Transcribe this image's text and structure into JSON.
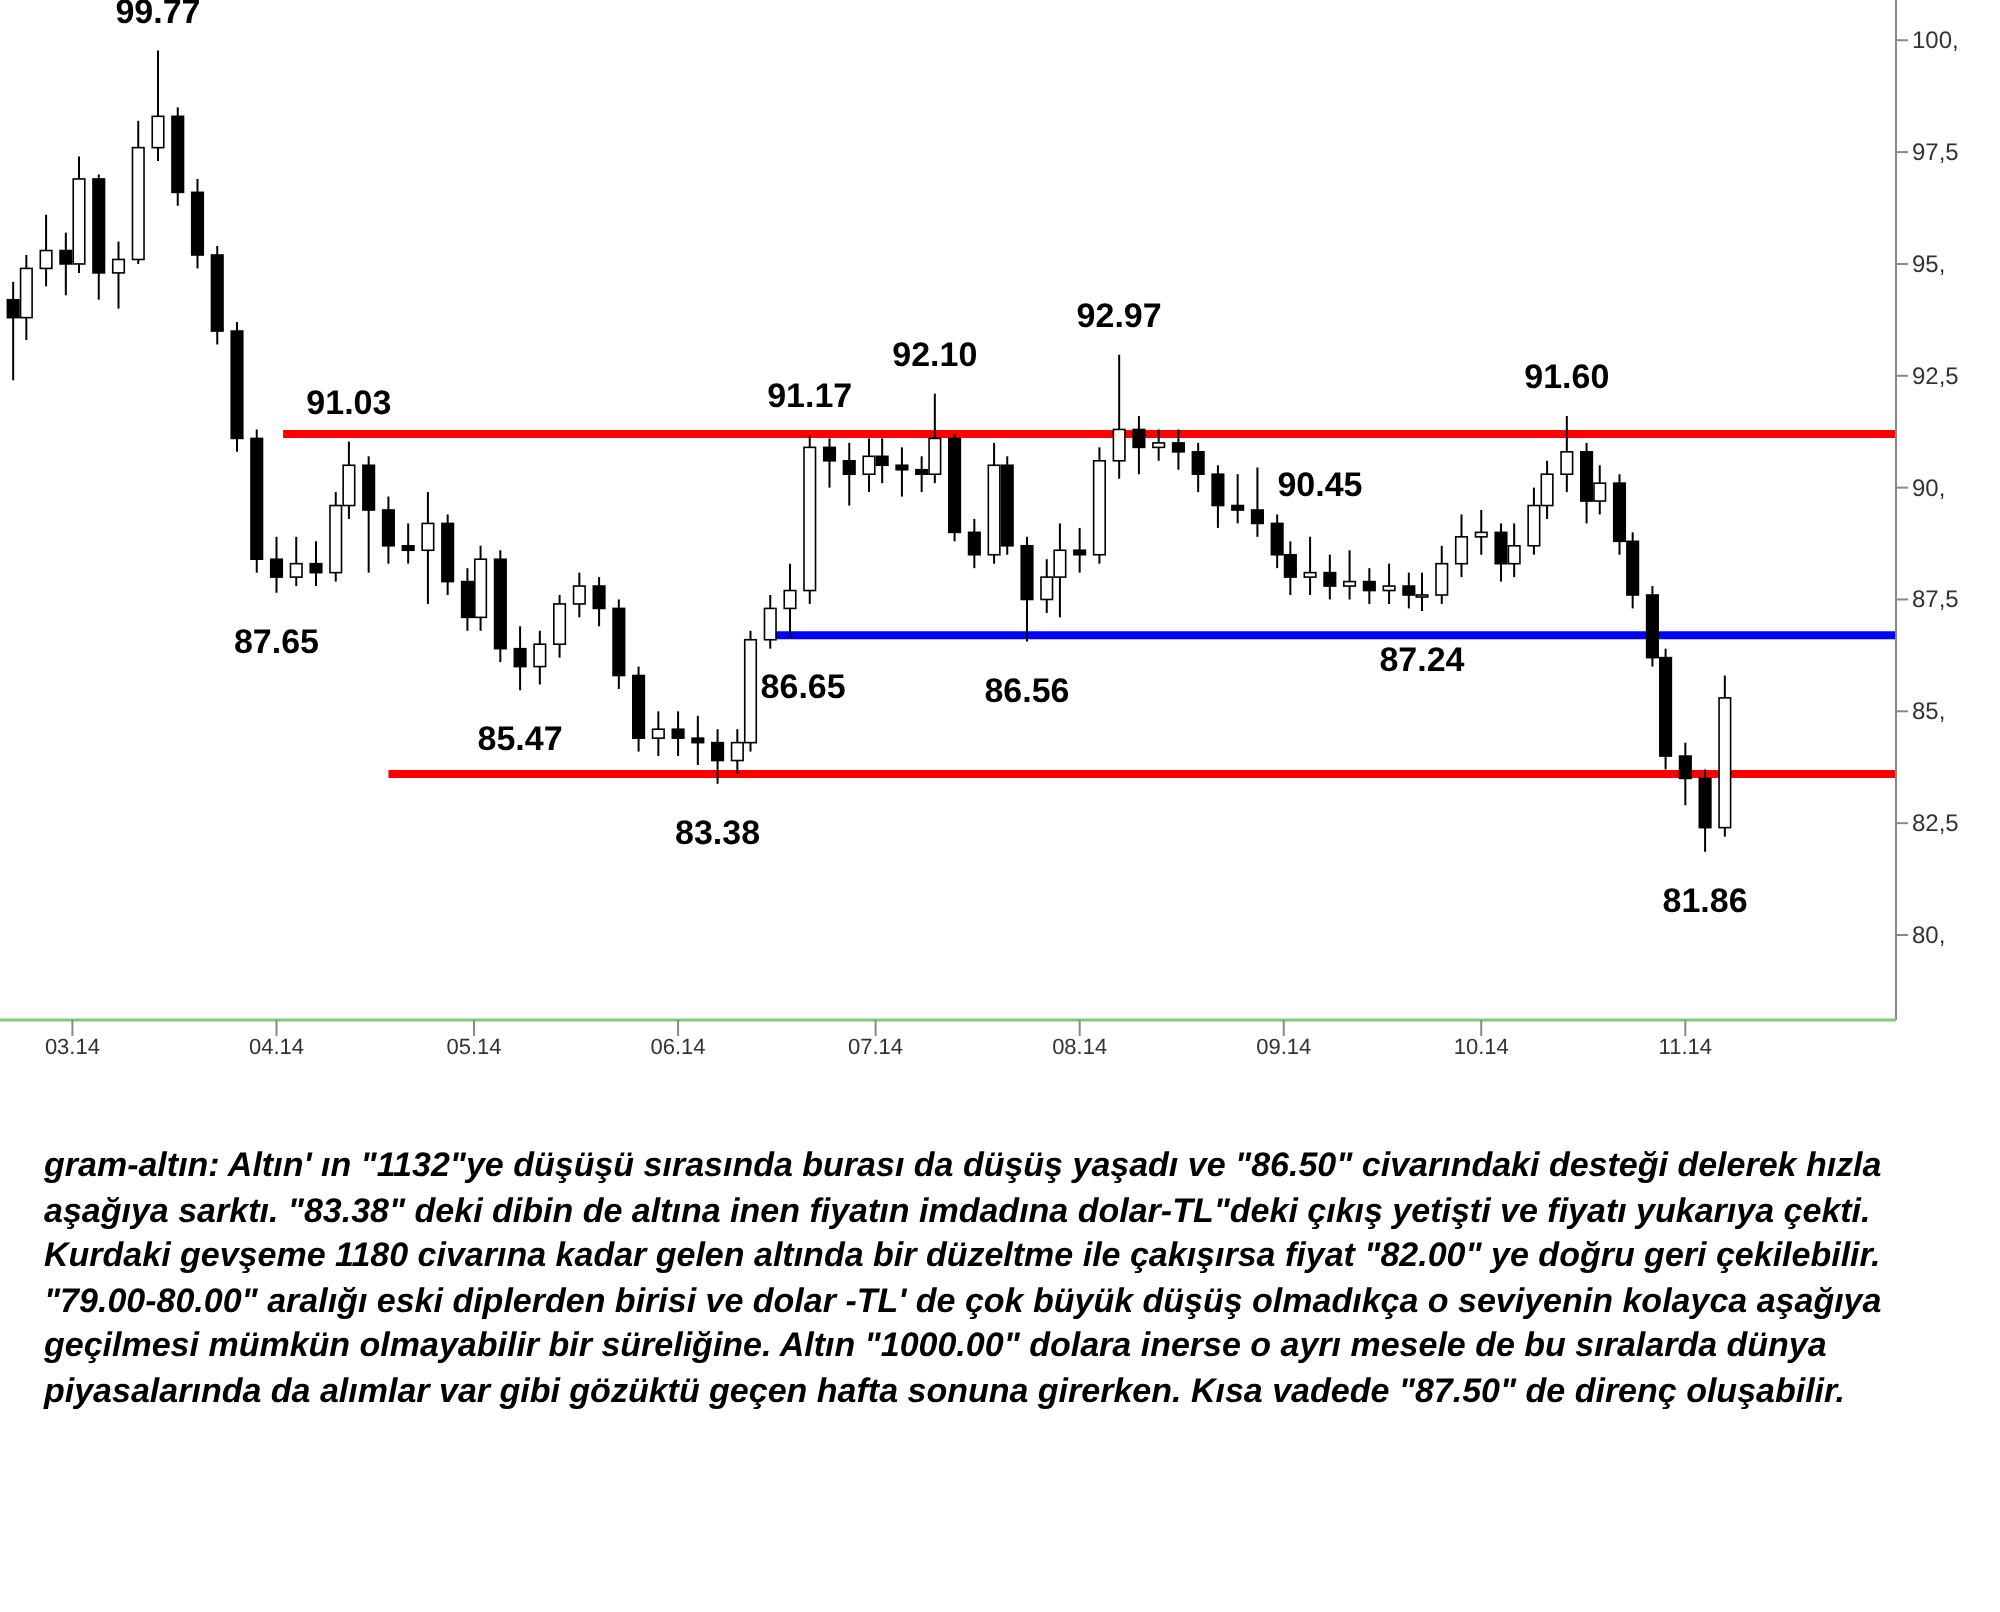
{
  "chart_data": {
    "type": "candlestick",
    "x": [
      "2014-02-20",
      "2014-02-22",
      "2014-02-25",
      "2014-02-28",
      "2014-03-02",
      "2014-03-05",
      "2014-03-08",
      "2014-03-11",
      "2014-03-14",
      "2014-03-17",
      "2014-03-20",
      "2014-03-23",
      "2014-03-26",
      "2014-03-29",
      "2014-04-01",
      "2014-04-04",
      "2014-04-07",
      "2014-04-10",
      "2014-04-12",
      "2014-04-15",
      "2014-04-18",
      "2014-04-21",
      "2014-04-24",
      "2014-04-27",
      "2014-04-30",
      "2014-05-02",
      "2014-05-05",
      "2014-05-08",
      "2014-05-11",
      "2014-05-14",
      "2014-05-17",
      "2014-05-20",
      "2014-05-23",
      "2014-05-26",
      "2014-05-29",
      "2014-06-01",
      "2014-06-04",
      "2014-06-07",
      "2014-06-10",
      "2014-06-12",
      "2014-06-15",
      "2014-06-18",
      "2014-06-21",
      "2014-06-24",
      "2014-06-27",
      "2014-06-30",
      "2014-07-02",
      "2014-07-05",
      "2014-07-08",
      "2014-07-10",
      "2014-07-13",
      "2014-07-16",
      "2014-07-19",
      "2014-07-21",
      "2014-07-24",
      "2014-07-27",
      "2014-07-29",
      "2014-08-01",
      "2014-08-04",
      "2014-08-07",
      "2014-08-10",
      "2014-08-13",
      "2014-08-16",
      "2014-08-19",
      "2014-08-22",
      "2014-08-25",
      "2014-08-28",
      "2014-08-31",
      "2014-09-02",
      "2014-09-05",
      "2014-09-08",
      "2014-09-11",
      "2014-09-14",
      "2014-09-17",
      "2014-09-20",
      "2014-09-22",
      "2014-09-25",
      "2014-09-28",
      "2014-10-01",
      "2014-10-04",
      "2014-10-06",
      "2014-10-09",
      "2014-10-11",
      "2014-10-14",
      "2014-10-17",
      "2014-10-19",
      "2014-10-22",
      "2014-10-24",
      "2014-10-27",
      "2014-10-29",
      "2014-11-01",
      "2014-11-04",
      "2014-11-07"
    ],
    "ohlc": [
      [
        94.2,
        94.6,
        92.4,
        93.8
      ],
      [
        93.8,
        95.2,
        93.3,
        94.9
      ],
      [
        94.9,
        96.1,
        94.5,
        95.3
      ],
      [
        95.3,
        95.7,
        94.3,
        95.0
      ],
      [
        95.0,
        97.4,
        94.8,
        96.9
      ],
      [
        96.9,
        97.0,
        94.2,
        94.8
      ],
      [
        94.8,
        95.5,
        94.0,
        95.1
      ],
      [
        95.1,
        98.2,
        95.0,
        97.6
      ],
      [
        97.6,
        99.77,
        97.3,
        98.3
      ],
      [
        98.3,
        98.5,
        96.3,
        96.6
      ],
      [
        96.6,
        96.9,
        94.9,
        95.2
      ],
      [
        95.2,
        95.4,
        93.2,
        93.5
      ],
      [
        93.5,
        93.7,
        90.8,
        91.1
      ],
      [
        91.1,
        91.3,
        88.1,
        88.4
      ],
      [
        88.4,
        88.9,
        87.65,
        88.0
      ],
      [
        88.0,
        88.9,
        87.8,
        88.3
      ],
      [
        88.3,
        88.8,
        87.8,
        88.1
      ],
      [
        88.1,
        89.9,
        87.9,
        89.6
      ],
      [
        89.6,
        91.03,
        89.3,
        90.5
      ],
      [
        90.5,
        90.7,
        88.1,
        89.5
      ],
      [
        89.5,
        89.8,
        88.3,
        88.7
      ],
      [
        88.7,
        89.2,
        88.3,
        88.6
      ],
      [
        88.6,
        89.9,
        87.4,
        89.2
      ],
      [
        89.2,
        89.4,
        87.6,
        87.9
      ],
      [
        87.9,
        88.2,
        86.8,
        87.1
      ],
      [
        87.1,
        88.7,
        86.8,
        88.4
      ],
      [
        88.4,
        88.6,
        86.1,
        86.4
      ],
      [
        86.4,
        86.9,
        85.47,
        86.0
      ],
      [
        86.0,
        86.8,
        85.6,
        86.5
      ],
      [
        86.5,
        87.6,
        86.2,
        87.4
      ],
      [
        87.4,
        88.1,
        87.1,
        87.8
      ],
      [
        87.8,
        88.0,
        86.9,
        87.3
      ],
      [
        87.3,
        87.5,
        85.5,
        85.8
      ],
      [
        85.8,
        86.0,
        84.1,
        84.4
      ],
      [
        84.4,
        85.0,
        84.0,
        84.6
      ],
      [
        84.6,
        85.0,
        84.0,
        84.4
      ],
      [
        84.4,
        84.9,
        83.8,
        84.3
      ],
      [
        84.3,
        84.6,
        83.38,
        83.9
      ],
      [
        83.9,
        84.6,
        83.6,
        84.3
      ],
      [
        84.3,
        86.8,
        84.1,
        86.6
      ],
      [
        86.6,
        87.6,
        86.4,
        87.3
      ],
      [
        87.3,
        88.3,
        86.65,
        87.7
      ],
      [
        87.7,
        91.17,
        87.4,
        90.9
      ],
      [
        90.9,
        91.1,
        90.0,
        90.6
      ],
      [
        90.6,
        91.0,
        89.6,
        90.3
      ],
      [
        90.3,
        91.1,
        89.9,
        90.7
      ],
      [
        90.7,
        91.1,
        90.1,
        90.5
      ],
      [
        90.5,
        90.9,
        89.8,
        90.4
      ],
      [
        90.4,
        90.7,
        89.9,
        90.3
      ],
      [
        90.3,
        92.1,
        90.1,
        91.1
      ],
      [
        91.1,
        91.2,
        88.8,
        89.0
      ],
      [
        89.0,
        89.3,
        88.2,
        88.5
      ],
      [
        88.5,
        91.0,
        88.3,
        90.5
      ],
      [
        90.5,
        90.7,
        88.5,
        88.7
      ],
      [
        88.7,
        88.9,
        86.56,
        87.5
      ],
      [
        87.5,
        88.4,
        87.2,
        88.0
      ],
      [
        88.0,
        89.2,
        87.1,
        88.6
      ],
      [
        88.6,
        89.1,
        88.1,
        88.5
      ],
      [
        88.5,
        90.9,
        88.3,
        90.6
      ],
      [
        90.6,
        92.97,
        90.2,
        91.3
      ],
      [
        91.3,
        91.6,
        90.3,
        90.9
      ],
      [
        90.9,
        91.3,
        90.6,
        91.0
      ],
      [
        91.0,
        91.3,
        90.4,
        90.8
      ],
      [
        90.8,
        91.0,
        89.9,
        90.3
      ],
      [
        90.3,
        90.5,
        89.1,
        89.6
      ],
      [
        89.6,
        90.3,
        89.2,
        89.5
      ],
      [
        89.5,
        90.45,
        88.9,
        89.2
      ],
      [
        89.2,
        89.4,
        88.2,
        88.5
      ],
      [
        88.5,
        88.8,
        87.6,
        88.0
      ],
      [
        88.0,
        88.9,
        87.6,
        88.1
      ],
      [
        88.1,
        88.5,
        87.5,
        87.8
      ],
      [
        87.8,
        88.6,
        87.5,
        87.9
      ],
      [
        87.9,
        88.2,
        87.4,
        87.7
      ],
      [
        87.7,
        88.3,
        87.4,
        87.8
      ],
      [
        87.8,
        88.1,
        87.3,
        87.6
      ],
      [
        87.6,
        88.1,
        87.24,
        87.6
      ],
      [
        87.6,
        88.7,
        87.4,
        88.3
      ],
      [
        88.3,
        89.4,
        88.0,
        88.9
      ],
      [
        88.9,
        89.5,
        88.5,
        89.0
      ],
      [
        89.0,
        89.2,
        87.9,
        88.3
      ],
      [
        88.3,
        89.2,
        88.0,
        88.7
      ],
      [
        88.7,
        90.0,
        88.5,
        89.6
      ],
      [
        89.6,
        90.6,
        89.3,
        90.3
      ],
      [
        90.3,
        91.6,
        89.9,
        90.8
      ],
      [
        90.8,
        91.0,
        89.2,
        89.7
      ],
      [
        89.7,
        90.5,
        89.4,
        90.1
      ],
      [
        90.1,
        90.3,
        88.5,
        88.8
      ],
      [
        88.8,
        89.0,
        87.3,
        87.6
      ],
      [
        87.6,
        87.8,
        86.0,
        86.2
      ],
      [
        86.2,
        86.4,
        83.7,
        84.0
      ],
      [
        84.0,
        84.3,
        82.9,
        83.5
      ],
      [
        83.5,
        83.7,
        81.86,
        82.4
      ],
      [
        82.4,
        85.8,
        82.2,
        85.3
      ]
    ],
    "series": [
      {
        "type": "line",
        "x": [
          "2014-04-02",
          "2014-12-03"
        ],
        "values": [
          91.2,
          91.2
        ],
        "color": "#ff0000"
      },
      {
        "type": "line",
        "x": [
          "2014-04-18",
          "2014-12-03"
        ],
        "values": [
          83.6,
          83.6
        ],
        "color": "#ff0000"
      },
      {
        "type": "line",
        "x": [
          "2014-06-15",
          "2014-12-03"
        ],
        "values": [
          86.7,
          86.7
        ],
        "color": "#0000ff"
      }
    ],
    "xlim": [
      "2014-02-18",
      "2014-12-03"
    ],
    "xticks": [
      {
        "value": "2014-03-01",
        "label": "03.14"
      },
      {
        "value": "2014-04-01",
        "label": "04.14"
      },
      {
        "value": "2014-05-01",
        "label": "05.14"
      },
      {
        "value": "2014-06-01",
        "label": "06.14"
      },
      {
        "value": "2014-07-01",
        "label": "07.14"
      },
      {
        "value": "2014-08-01",
        "label": "08.14"
      },
      {
        "value": "2014-09-01",
        "label": "09.14"
      },
      {
        "value": "2014-10-01",
        "label": "10.14"
      },
      {
        "value": "2014-11-01",
        "label": "11.14"
      }
    ],
    "ylim": [
      78.1,
      100.9
    ],
    "yticks": [
      {
        "value": 80,
        "label": "80,"
      },
      {
        "value": 82.5,
        "label": "82,5"
      },
      {
        "value": 85,
        "label": "85,"
      },
      {
        "value": 87.5,
        "label": "87,5"
      },
      {
        "value": 90,
        "label": "90,"
      },
      {
        "value": 92.5,
        "label": "92,5"
      },
      {
        "value": 95,
        "label": "95,"
      },
      {
        "value": 97.5,
        "label": "97,5"
      },
      {
        "value": 100,
        "label": "100,"
      }
    ],
    "annotations": [
      {
        "text": "99.77",
        "x": "2014-03-14",
        "y": 99.77
      },
      {
        "text": "91.03",
        "x": "2014-04-12",
        "y": 91.03
      },
      {
        "text": "87.65",
        "x": "2014-04-01",
        "y": 87.65
      },
      {
        "text": "85.47",
        "x": "2014-05-08",
        "y": 85.47
      },
      {
        "text": "83.38",
        "x": "2014-06-07",
        "y": 83.38
      },
      {
        "text": "86.65",
        "x": "2014-06-20",
        "y": 86.65
      },
      {
        "text": "91.17",
        "x": "2014-06-21",
        "y": 91.17
      },
      {
        "text": "92.10",
        "x": "2014-07-10",
        "y": 92.1
      },
      {
        "text": "86.56",
        "x": "2014-07-24",
        "y": 86.56
      },
      {
        "text": "92.97",
        "x": "2014-08-07",
        "y": 92.97
      },
      {
        "text": "90.45",
        "x": "2014-08-28",
        "y": 90.45
      },
      {
        "text": "87.24",
        "x": "2014-09-22",
        "y": 87.24
      },
      {
        "text": "91.60",
        "x": "2014-10-14",
        "y": 91.6
      },
      {
        "text": "81.86",
        "x": "2014-11-04",
        "y": 81.86
      },
      "gram-altın: Altın' ın \"1132\"ye düşüşü sırasında burası da düşüş yaşadı ve \"86.50\" civarındaki desteği delerek hızla aşağıya sarktı. \"83.38\" deki dibin de altına inen fiyatın imdadına dolar-TL\"deki çıkış yetişti ve fiyatı yukarıya çekti. Kurdaki gevşeme 1180 civarına kadar gelen altında bir düzeltme ile çakışırsa fiyat \"82.00\" ye doğru geri çekilebilir. \"79.00-80.00\" aralığı eski diplerden birisi ve dolar -TL' de çok büyük düşüş olmadıkça o seviyenin kolayca aşağıya geçilmesi mümkün olmayabilir bir süreliğine. Altın \"1000.00\" dolara inerse o ayrı mesele de bu sıralarda dünya piyasalarında da alımlar var gibi gözüktü geçen hafta sonuna girerken. Kısa vadede \"87.50\" de direnç oluşabilir."
    ]
  }
}
